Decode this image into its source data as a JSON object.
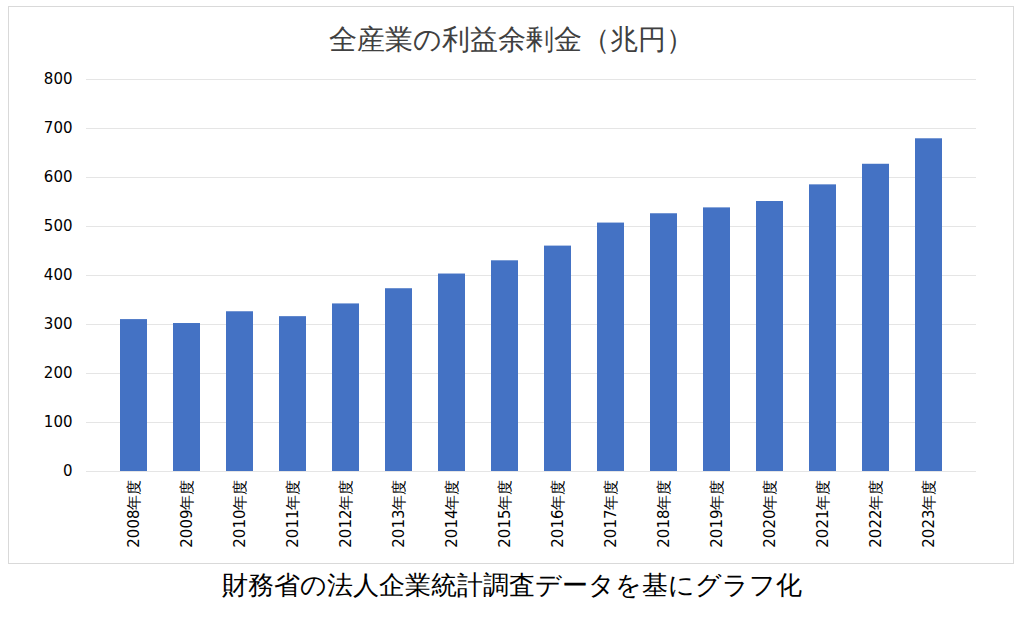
{
  "chart_data": {
    "type": "bar",
    "title": "全産業の利益余剰金（兆円）",
    "caption": "財務省の法人企業統計調査データを基にグラフ化",
    "categories": [
      "2008年度",
      "2009年度",
      "2010年度",
      "2011年度",
      "2012年度",
      "2013年度",
      "2014年度",
      "2015年度",
      "2016年度",
      "2017年度",
      "2018年度",
      "2019年度",
      "2020年度",
      "2021年度",
      "2022年度",
      "2023年度"
    ],
    "values": [
      310,
      302,
      326,
      316,
      342,
      373,
      403,
      430,
      460,
      507,
      526,
      538,
      551,
      585,
      627,
      679
    ],
    "color": "#4472c4",
    "ylim": [
      0,
      800
    ],
    "yticks": [
      0,
      100,
      200,
      300,
      400,
      500,
      600,
      700,
      800
    ],
    "grid": true
  }
}
